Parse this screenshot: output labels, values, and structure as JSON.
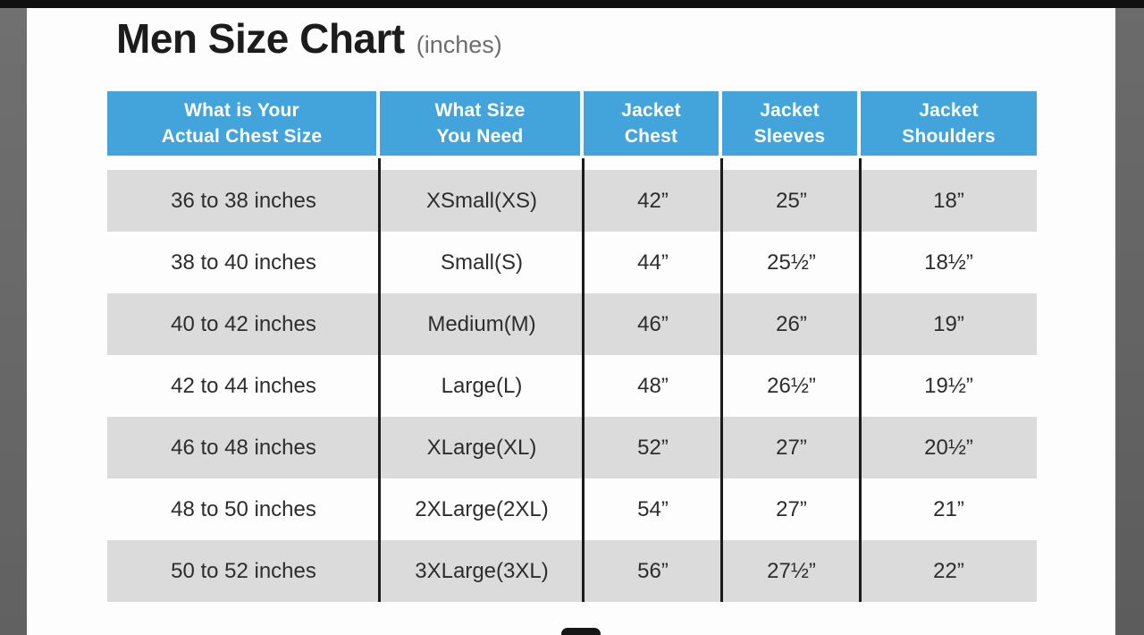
{
  "title": {
    "main": "Men Size Chart",
    "suffix": "(inches)"
  },
  "table": {
    "headers": [
      {
        "line1": "What is Your",
        "line2": "Actual Chest Size"
      },
      {
        "line1": "What Size",
        "line2": "You Need"
      },
      {
        "line1": "Jacket",
        "line2": "Chest"
      },
      {
        "line1": "Jacket",
        "line2": "Sleeves"
      },
      {
        "line1": "Jacket",
        "line2": "Shoulders"
      }
    ],
    "rows": [
      [
        "36 to 38 inches",
        "XSmall(XS)",
        "42”",
        "25”",
        "18”"
      ],
      [
        "38 to 40 inches",
        "Small(S)",
        "44”",
        "25½”",
        "18½”"
      ],
      [
        "40 to 42 inches",
        "Medium(M)",
        "46”",
        "26”",
        "19”"
      ],
      [
        "42 to 44 inches",
        "Large(L)",
        "48”",
        "26½”",
        "19½”"
      ],
      [
        "46 to 48 inches",
        "XLarge(XL)",
        "52”",
        "27”",
        "20½”"
      ],
      [
        "48 to 50 inches",
        "2XLarge(2XL)",
        "54”",
        "27”",
        "21”"
      ],
      [
        "50 to 52 inches",
        "3XLarge(3XL)",
        "56”",
        "27½”",
        "22”"
      ]
    ]
  },
  "colors": {
    "header_bg": "#43a4db",
    "header_text": "#ffffff",
    "shaded_row_bg": "#dbdbdb",
    "plain_row_bg": "#fdfdfd",
    "column_divider": "#1b1b1b",
    "title_text": "#1c1c1c",
    "title_suffix_text": "#6d6d6d",
    "frame_side": "#6a6a6a",
    "frame_top": "#101010"
  }
}
